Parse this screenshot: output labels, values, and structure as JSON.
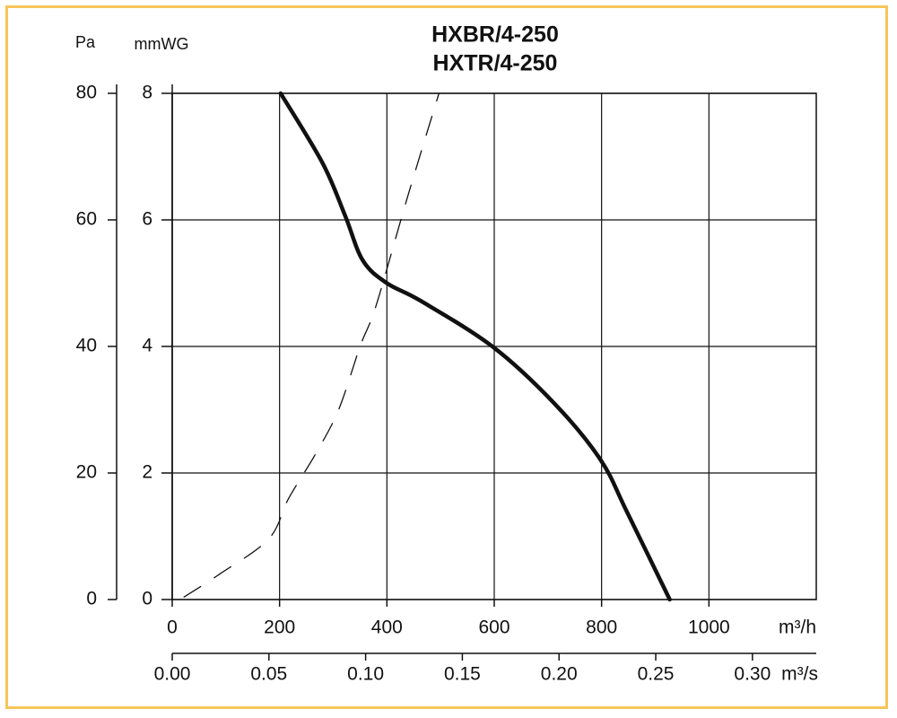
{
  "chart_data": {
    "type": "line",
    "title": "HXBR/4-250",
    "subtitle": "HXTR/4-250",
    "y_label": "Pa",
    "y2_label": "mmWG",
    "x_label": "m³/h",
    "x2_label": "m³/s",
    "xlim": [
      0,
      1200
    ],
    "xticks": [
      0,
      200,
      400,
      600,
      800,
      1000
    ],
    "x2lim": [
      0,
      0.333
    ],
    "x2ticks": [
      {
        "value": 0,
        "label": "0.00"
      },
      0.05,
      {
        "value": 0.1,
        "label": "0.10"
      },
      0.15,
      {
        "value": 0.2,
        "label": "0.20"
      },
      0.25,
      {
        "value": 0.3,
        "label": "0.30"
      }
    ],
    "ylim": [
      0,
      80
    ],
    "yticks": [
      0,
      20,
      40,
      60,
      80
    ],
    "y2lim": [
      0,
      8
    ],
    "y2ticks": [
      0,
      2,
      4,
      6,
      8
    ],
    "grid": true,
    "series": [
      {
        "color": "#111111",
        "dashed": false,
        "x": [
          202,
          280,
          322,
          355,
          400,
          463,
          598,
          713,
          798,
          847,
          927
        ],
        "values": [
          80,
          69,
          60.7,
          53.6,
          50,
          47.2,
          39.9,
          30.9,
          22.1,
          13.9,
          0
        ]
      },
      {
        "color": "#111111",
        "dashed": true,
        "x": [
          22,
          88,
          180,
          217,
          267,
          310,
          350,
          380,
          438,
          497
        ],
        "values": [
          0.4,
          4,
          9.6,
          16,
          23,
          30,
          40,
          46.5,
          63.5,
          80
        ]
      }
    ]
  }
}
